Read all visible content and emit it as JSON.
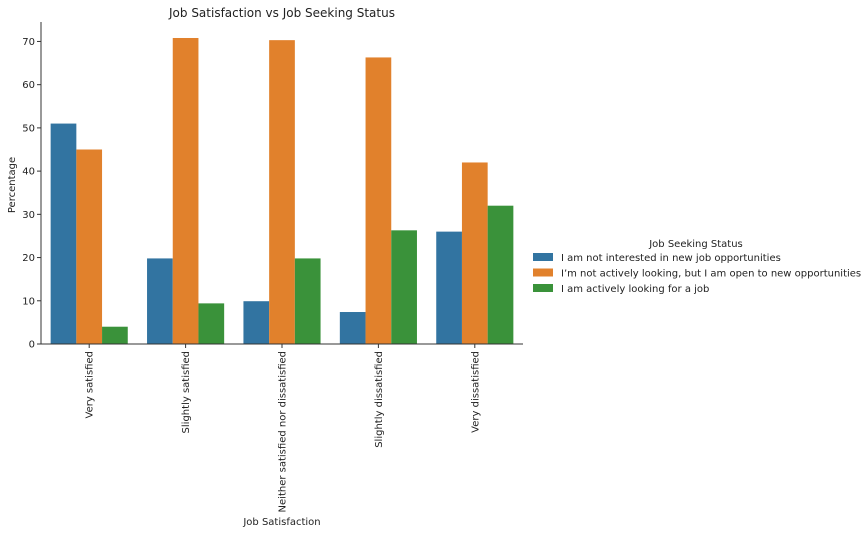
{
  "chart_data": {
    "type": "bar",
    "title": "Job Satisfaction vs Job Seeking Status",
    "xlabel": "Job Satisfaction",
    "ylabel": "Percentage",
    "ylim": [
      0,
      74.5
    ],
    "yticks": [
      0,
      10,
      20,
      30,
      40,
      50,
      60,
      70
    ],
    "categories": [
      "Very satisfied",
      "Slightly satisfied",
      "Neither satisfied nor dissatisfied",
      "Slightly dissatisfied",
      "Very dissatisfied"
    ],
    "series": [
      {
        "name": "I am not interested in new job opportunities",
        "color": "#3274a1",
        "values": [
          51.0,
          19.8,
          9.9,
          7.4,
          26.0
        ]
      },
      {
        "name": "I’m not actively looking, but I am open to new opportunities",
        "color": "#e1812c",
        "values": [
          45.0,
          70.8,
          70.3,
          66.3,
          42.0
        ]
      },
      {
        "name": "I am actively looking for a job",
        "color": "#3a923a",
        "values": [
          4.0,
          9.4,
          19.8,
          26.3,
          32.0
        ]
      }
    ],
    "legend": {
      "title": "Job Seeking Status",
      "placement": "right"
    },
    "grid": false
  }
}
